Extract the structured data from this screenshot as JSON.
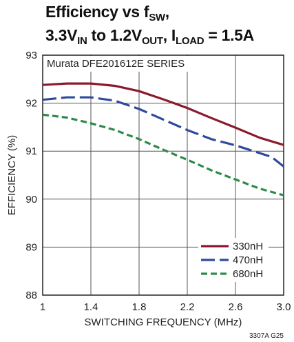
{
  "title": {
    "line1_prefix": "Efficiency vs f",
    "line1_sub": "SW",
    "line1_suffix": ",",
    "line2_a": "3.3V",
    "line2_sub1": "IN",
    "line2_b": " to 1.2V",
    "line2_sub2": "OUT",
    "line2_c": ", I",
    "line2_sub3": "LOAD",
    "line2_d": " = 1.5A"
  },
  "chart_data": {
    "type": "line",
    "title": "Efficiency vs fSW, 3.3VIN to 1.2VOUT, ILOAD = 1.5A",
    "xlabel": "SWITCHING FREQUENCY (MHz)",
    "ylabel": "EFFICIENCY (%)",
    "xlim": [
      1.0,
      3.0
    ],
    "ylim": [
      88,
      93
    ],
    "xticks": [
      1.0,
      1.4,
      1.8,
      2.2,
      2.6,
      3.0
    ],
    "xtick_labels": [
      "1",
      "1.4",
      "1.8",
      "2.2",
      "2.6",
      "3.0"
    ],
    "yticks": [
      88,
      89,
      90,
      91,
      92,
      93
    ],
    "ytick_labels": [
      "88",
      "89",
      "90",
      "91",
      "92",
      "93"
    ],
    "grid": true,
    "legend_position": "bottom-right",
    "annotation": "Murata DFE201612E SERIES",
    "figure_code": "3307A G25",
    "series": [
      {
        "name": "330nH",
        "color": "#8b1a2e",
        "dash": "solid",
        "x": [
          1.0,
          1.2,
          1.4,
          1.6,
          1.8,
          2.0,
          2.2,
          2.4,
          2.6,
          2.8,
          3.0
        ],
        "y": [
          92.38,
          92.41,
          92.41,
          92.36,
          92.25,
          92.08,
          91.9,
          91.69,
          91.49,
          91.28,
          91.13
        ]
      },
      {
        "name": "470nH",
        "color": "#2e4a9e",
        "dash": "long-dash",
        "x": [
          1.0,
          1.2,
          1.4,
          1.6,
          1.8,
          2.0,
          2.2,
          2.4,
          2.6,
          2.8,
          2.9,
          3.0
        ],
        "y": [
          92.07,
          92.12,
          92.12,
          92.05,
          91.88,
          91.66,
          91.44,
          91.25,
          91.12,
          90.96,
          90.88,
          90.68
        ]
      },
      {
        "name": "680nH",
        "color": "#2e8a4a",
        "dash": "short-dash",
        "x": [
          1.0,
          1.2,
          1.4,
          1.6,
          1.8,
          2.0,
          2.2,
          2.4,
          2.6,
          2.8,
          3.0
        ],
        "y": [
          91.76,
          91.7,
          91.58,
          91.44,
          91.25,
          91.03,
          90.82,
          90.6,
          90.41,
          90.22,
          90.08
        ]
      }
    ]
  }
}
